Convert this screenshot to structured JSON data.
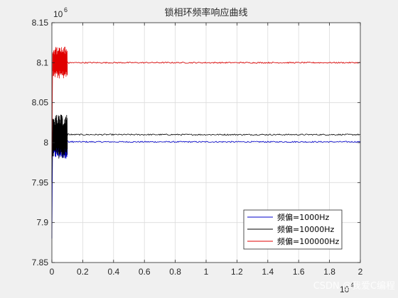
{
  "chart_data": {
    "type": "line",
    "title": "锁相环频率响应曲线",
    "xlabel": "",
    "ylabel": "",
    "x_exponent_label": "10",
    "x_exponent_power": "4",
    "y_exponent_label": "10",
    "y_exponent_power": "6",
    "xlim": [
      0,
      2
    ],
    "ylim": [
      7.85,
      8.15
    ],
    "x_ticks": [
      "0",
      "0.2",
      "0.4",
      "0.6",
      "0.8",
      "1",
      "1.2",
      "1.4",
      "1.6",
      "1.8",
      "2"
    ],
    "y_ticks": [
      "7.85",
      "7.9",
      "7.95",
      "8",
      "8.05",
      "8.1",
      "8.15"
    ],
    "grid": true,
    "legend_placement": "bottom-right",
    "series": [
      {
        "name": "频偏=1000Hz",
        "color": "#0000cc",
        "start": 7.88,
        "initial_range": [
          7.98,
          8.02
        ],
        "steady": 8.001
      },
      {
        "name": "频偏=10000Hz",
        "color": "#000000",
        "start": 7.95,
        "initial_range": [
          7.98,
          8.035
        ],
        "steady": 8.01
      },
      {
        "name": "频偏=100000Hz",
        "color": "#e00000",
        "start": 7.98,
        "initial_range": [
          8.08,
          8.12
        ],
        "steady": 8.1
      }
    ],
    "transient_end_x": 0.1
  },
  "watermark": "CSDN @我爱C编程"
}
